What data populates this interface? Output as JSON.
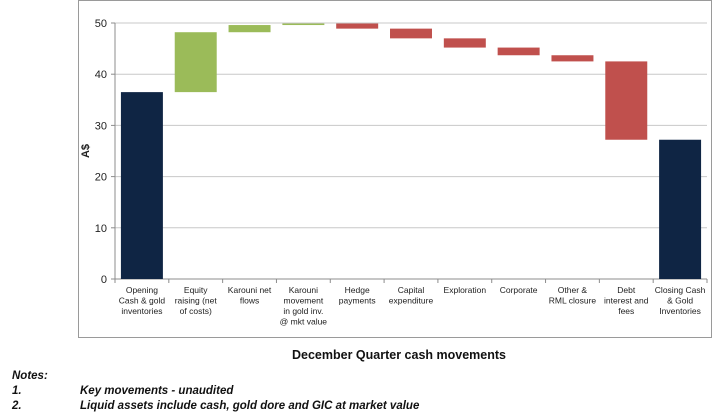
{
  "chart_data": {
    "type": "bar",
    "subtype": "waterfall",
    "ylabel": "A$",
    "xlabel": "December Quarter cash movements",
    "ylim": [
      0,
      50
    ],
    "yticks": [
      0,
      10,
      20,
      30,
      40,
      50
    ],
    "grid": true,
    "categories": [
      [
        "Opening",
        "Cash & gold",
        "inventories"
      ],
      [
        "Equity",
        "raising (net",
        "of costs)"
      ],
      [
        "Karouni net",
        "flows"
      ],
      [
        "Karouni",
        "movement",
        "in gold inv.",
        "@ mkt value"
      ],
      [
        "Hedge",
        "payments"
      ],
      [
        "Capital",
        "expenditure"
      ],
      [
        "Exploration"
      ],
      [
        "Corporate"
      ],
      [
        "Other &",
        "RML closure"
      ],
      [
        "Debt",
        "interest and",
        "fees"
      ],
      [
        "Closing Cash",
        "& Gold",
        "Inventories"
      ]
    ],
    "bars": [
      {
        "base": 0,
        "top": 36.5,
        "kind": "total"
      },
      {
        "base": 36.5,
        "top": 48.2,
        "kind": "increase"
      },
      {
        "base": 48.2,
        "top": 49.6,
        "kind": "increase"
      },
      {
        "base": 49.6,
        "top": 49.9,
        "kind": "increase"
      },
      {
        "base": 48.9,
        "top": 49.9,
        "kind": "decrease"
      },
      {
        "base": 47.0,
        "top": 48.9,
        "kind": "decrease"
      },
      {
        "base": 45.2,
        "top": 47.0,
        "kind": "decrease"
      },
      {
        "base": 43.7,
        "top": 45.2,
        "kind": "decrease"
      },
      {
        "base": 42.5,
        "top": 43.7,
        "kind": "decrease"
      },
      {
        "base": 27.2,
        "top": 42.5,
        "kind": "decrease"
      },
      {
        "base": 0,
        "top": 27.2,
        "kind": "total"
      }
    ],
    "colors": {
      "total": "#0f2544",
      "increase": "#9bbb59",
      "decrease": "#c0504d",
      "grid": "#c8c8c8",
      "axis": "#8c8c8c"
    }
  },
  "notes": {
    "heading": "Notes:",
    "items": [
      {
        "num": "1.",
        "text": "Key movements - unaudited"
      },
      {
        "num": "2.",
        "text": "Liquid assets include cash, gold dore and GIC at market value"
      }
    ]
  }
}
